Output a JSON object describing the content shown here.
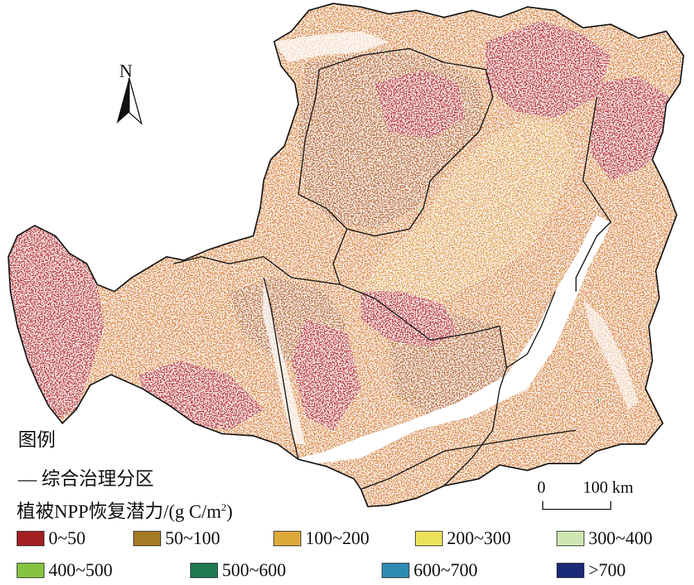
{
  "map": {
    "colors": {
      "background": "#ffffff",
      "outline": "#1a1a1a",
      "c0_50": "#a31f22",
      "c50_100": "#a57a24",
      "c100_200": "#dda93a",
      "c200_300": "#ebe15a",
      "c300_400": "#cfe6b2",
      "c400_500": "#86c440",
      "c500_600": "#1f7a52",
      "c600_700": "#2f8bb0",
      "c700plus": "#1b2a78"
    }
  },
  "north_arrow": {
    "label": "N",
    "icon": "north-arrow-icon"
  },
  "scale_bar": {
    "zero_label": "0",
    "distance_label": "100 km"
  },
  "legend": {
    "title": "图例",
    "zone_line_label": "— 综合治理分区",
    "npp_label": "植被NPP恢复潜力/(g C/m",
    "npp_label_sup": "2",
    "npp_label_close": ")",
    "classes": [
      {
        "label": "0~50",
        "color": "#a31f22"
      },
      {
        "label": "50~100",
        "color": "#a57a24"
      },
      {
        "label": "100~200",
        "color": "#dda93a"
      },
      {
        "label": "200~300",
        "color": "#ebe15a"
      },
      {
        "label": "300~400",
        "color": "#cfe6b2"
      },
      {
        "label": "400~500",
        "color": "#86c440"
      },
      {
        "label": "500~600",
        "color": "#1f7a52"
      },
      {
        "label": "600~700",
        "color": "#2f8bb0"
      },
      {
        "label": ">700",
        "color": "#1b2a78"
      }
    ]
  }
}
